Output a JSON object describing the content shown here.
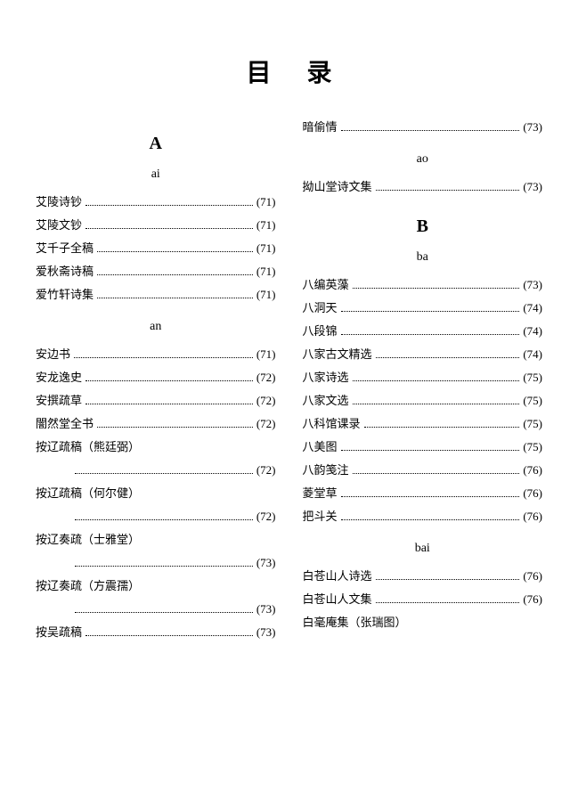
{
  "title": "目录",
  "left_column": {
    "sections": [
      {
        "letter": "A",
        "groups": [
          {
            "pinyin": "ai",
            "entries": [
              {
                "title": "艾陵诗钞",
                "page": "(71)"
              },
              {
                "title": "艾陵文钞",
                "page": "(71)"
              },
              {
                "title": "艾千子全稿",
                "page": "(71)"
              },
              {
                "title": "爱秋斋诗稿",
                "page": "(71)"
              },
              {
                "title": "爱竹轩诗集",
                "page": "(71)"
              }
            ]
          },
          {
            "pinyin": "an",
            "entries": [
              {
                "title": "安边书",
                "page": "(71)"
              },
              {
                "title": "安龙逸史",
                "page": "(72)"
              },
              {
                "title": "安撰疏草",
                "page": "(72)"
              },
              {
                "title": "闇然堂全书",
                "page": "(72)"
              },
              {
                "title": "按辽疏稿（熊廷弼）",
                "page": "",
                "continuation": true,
                "cont_page": "(72)"
              },
              {
                "title": "按辽疏稿（何尔健）",
                "page": "",
                "continuation": true,
                "cont_page": "(72)"
              },
              {
                "title": "按辽奏疏（士雅堂）",
                "page": "",
                "continuation": true,
                "cont_page": "(73)"
              },
              {
                "title": "按辽奏疏（方震孺）",
                "page": "",
                "continuation": true,
                "cont_page": "(73)"
              },
              {
                "title": "按吴疏稿",
                "page": "(73)"
              }
            ]
          }
        ]
      }
    ]
  },
  "right_column": {
    "top_entries": [
      {
        "title": "暗偷情",
        "page": "(73)"
      }
    ],
    "sections": [
      {
        "groups": [
          {
            "pinyin": "ao",
            "entries": [
              {
                "title": "拗山堂诗文集",
                "page": "(73)"
              }
            ]
          }
        ]
      },
      {
        "letter": "B",
        "groups": [
          {
            "pinyin": "ba",
            "entries": [
              {
                "title": "八编英藻",
                "page": "(73)"
              },
              {
                "title": "八洞天",
                "page": "(74)"
              },
              {
                "title": "八段锦",
                "page": "(74)"
              },
              {
                "title": "八家古文精选",
                "page": "(74)"
              },
              {
                "title": "八家诗选",
                "page": "(75)"
              },
              {
                "title": "八家文选",
                "page": "(75)"
              },
              {
                "title": "八科馆课录",
                "page": "(75)"
              },
              {
                "title": "八美图",
                "page": "(75)"
              },
              {
                "title": "八韵笺注",
                "page": "(76)"
              },
              {
                "title": "菱堂草",
                "page": "(76)"
              },
              {
                "title": "把斗关",
                "page": "(76)"
              }
            ]
          },
          {
            "pinyin": "bai",
            "entries": [
              {
                "title": "白苍山人诗选",
                "page": "(76)"
              },
              {
                "title": "白苍山人文集",
                "page": "(76)"
              },
              {
                "title": "白毫庵集（张瑞图）",
                "page": ""
              }
            ]
          }
        ]
      }
    ]
  },
  "colors": {
    "text": "#000000",
    "background": "#ffffff"
  },
  "typography": {
    "title_fontsize": 28,
    "section_letter_fontsize": 20,
    "pinyin_fontsize": 14,
    "entry_fontsize": 13,
    "font_family": "SimSun"
  }
}
